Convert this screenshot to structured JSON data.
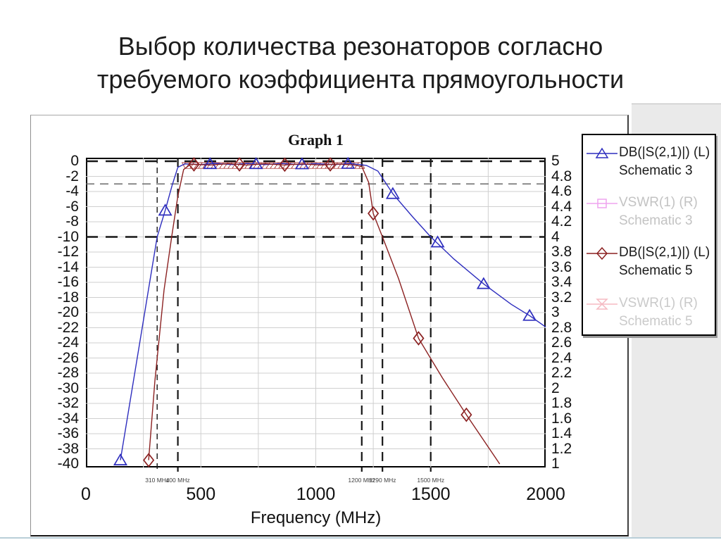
{
  "slide": {
    "title_line1": "Выбор количества резонаторов согласно",
    "title_line2": "требуемого коэффициента прямоугольности"
  },
  "chart": {
    "legend": {
      "items": [
        {
          "label": "DB(|S(2,1)|) (L)",
          "sublabel": "Schematic 3",
          "color": "#2d2dbe",
          "text_color": "#1a1a1a",
          "marker": "triangle"
        },
        {
          "label": "VSWR(1) (R)",
          "sublabel": "Schematic 3",
          "color": "#efa3ef",
          "text_color": "#c3c3c3",
          "marker": "square"
        },
        {
          "label": "DB(|S(2,1)|) (L)",
          "sublabel": "Schematic 5",
          "color": "#8b2121",
          "text_color": "#1a1a1a",
          "marker": "diamond"
        },
        {
          "label": "VSWR(1) (R)",
          "sublabel": "Schematic 5",
          "color": "#f5bac2",
          "text_color": "#cacaca",
          "marker": "bowtie"
        }
      ]
    }
  },
  "chart_data": {
    "type": "line",
    "title": "Graph 1",
    "xlabel": "Frequency (MHz)",
    "x_range": [
      0,
      2000
    ],
    "y_left_range": [
      -40,
      0
    ],
    "y_right_range": [
      1,
      5
    ],
    "grid": {
      "x_step_mhz": 250,
      "y_step_db": 2,
      "grid_on": true
    },
    "x_ticks": [
      {
        "label": "0",
        "value": 0
      },
      {
        "label": "500",
        "value": 500
      },
      {
        "label": "1000",
        "value": 1000
      },
      {
        "label": "1500",
        "value": 1500
      },
      {
        "label": "2000",
        "value": 2000
      }
    ],
    "y_left_ticks": [
      "0",
      "-2",
      "-4",
      "-6",
      "-8",
      "-10",
      "-12",
      "-14",
      "-16",
      "-18",
      "-20",
      "-22",
      "-24",
      "-26",
      "-28",
      "-30",
      "-32",
      "-34",
      "-36",
      "-38",
      "-40"
    ],
    "y_right_ticks": [
      "5",
      "4.8",
      "4.6",
      "4.4",
      "4.2",
      "4",
      "3.8",
      "3.6",
      "3.4",
      "3.2",
      "3",
      "2.8",
      "2.6",
      "2.4",
      "2.2",
      "2",
      "1.8",
      "1.6",
      "1.4",
      "1.2",
      "1"
    ],
    "limit_lines": {
      "horizontal_db": [
        {
          "db": 0,
          "style": "heavy"
        },
        {
          "db": -3,
          "style": "light"
        },
        {
          "db": -10,
          "style": "heavy"
        }
      ],
      "vertical": [
        {
          "mhz": 310,
          "label": "310 MHz",
          "style": "fine"
        },
        {
          "mhz": 400,
          "label": "400 MHz",
          "style": "heavy"
        },
        {
          "mhz": 1200,
          "label": "1200 MHz",
          "style": "heavy"
        },
        {
          "mhz": 1290,
          "label": "1290 MHz",
          "style": "heavy"
        },
        {
          "mhz": 1500,
          "label": "1500 MHz",
          "style": "heavy"
        }
      ]
    },
    "passband_hatch": {
      "x_from": 418,
      "x_to": 1212,
      "db_top": -0.18,
      "db_bottom": -0.95,
      "color": "#a83434"
    },
    "series": [
      {
        "name": "DB(|S(2,1)|) (L) Schematic 3",
        "color": "#2d2dbe",
        "marker": "triangle",
        "points": [
          [
            150,
            -39.5
          ],
          [
            310,
            -10
          ],
          [
            345,
            -6.5
          ],
          [
            375,
            -3.2
          ],
          [
            400,
            -0.8
          ],
          [
            430,
            -0.35
          ],
          [
            500,
            -0.45
          ],
          [
            560,
            -0.28
          ],
          [
            640,
            -0.45
          ],
          [
            700,
            -0.3
          ],
          [
            780,
            -0.45
          ],
          [
            850,
            -0.3
          ],
          [
            930,
            -0.45
          ],
          [
            1000,
            -0.32
          ],
          [
            1080,
            -0.45
          ],
          [
            1150,
            -0.3
          ],
          [
            1220,
            -0.55
          ],
          [
            1270,
            -1.3
          ],
          [
            1335,
            -4.3
          ],
          [
            1420,
            -7.3
          ],
          [
            1500,
            -10
          ],
          [
            1600,
            -12.9
          ],
          [
            1730,
            -16.2
          ],
          [
            1850,
            -18.9
          ],
          [
            1930,
            -20.4
          ],
          [
            2000,
            -21.9
          ]
        ],
        "marker_points": [
          [
            150,
            -39.5
          ],
          [
            345,
            -6.5
          ],
          [
            540,
            -0.35
          ],
          [
            740,
            -0.35
          ],
          [
            940,
            -0.38
          ],
          [
            1140,
            -0.32
          ],
          [
            1335,
            -4.3
          ],
          [
            1530,
            -10.7
          ],
          [
            1730,
            -16.2
          ],
          [
            1930,
            -20.4
          ]
        ]
      },
      {
        "name": "DB(|S(2,1)|) (L) Schematic 5",
        "color": "#8b2121",
        "marker": "diamond",
        "points": [
          [
            273,
            -39.5
          ],
          [
            300,
            -29
          ],
          [
            340,
            -17
          ],
          [
            373,
            -10
          ],
          [
            400,
            -4.6
          ],
          [
            425,
            -1.1
          ],
          [
            455,
            -0.4
          ],
          [
            540,
            -0.5
          ],
          [
            620,
            -0.32
          ],
          [
            700,
            -0.5
          ],
          [
            780,
            -0.33
          ],
          [
            860,
            -0.5
          ],
          [
            940,
            -0.35
          ],
          [
            1020,
            -0.5
          ],
          [
            1100,
            -0.36
          ],
          [
            1170,
            -0.5
          ],
          [
            1200,
            -0.7
          ],
          [
            1230,
            -2.8
          ],
          [
            1250,
            -6.9
          ],
          [
            1290,
            -10
          ],
          [
            1360,
            -15.5
          ],
          [
            1447,
            -23.4
          ],
          [
            1550,
            -28.6
          ],
          [
            1655,
            -33.5
          ],
          [
            1800,
            -40
          ]
        ],
        "marker_points": [
          [
            273,
            -39.5
          ],
          [
            470,
            -0.42
          ],
          [
            668,
            -0.42
          ],
          [
            865,
            -0.45
          ],
          [
            1063,
            -0.42
          ],
          [
            1250,
            -6.9
          ],
          [
            1447,
            -23.4
          ],
          [
            1655,
            -33.5
          ]
        ]
      }
    ]
  }
}
